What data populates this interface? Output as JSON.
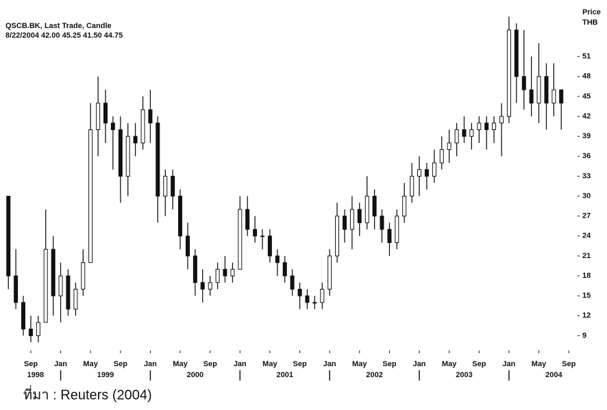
{
  "chart_data": {
    "type": "candlestick",
    "title": "QSCB.BK, Last Trade, Candle",
    "subtitle": "8/22/2004 42.00 45.25 41.50 44.75",
    "y_axis_label": [
      "Price",
      "THB"
    ],
    "source": "ที่มา : Reuters (2004)",
    "color": "#111111",
    "x": [
      1998.417,
      1998.5,
      1998.583,
      1998.667,
      1998.75,
      1998.833,
      1998.917,
      1999.0,
      1999.083,
      1999.167,
      1999.25,
      1999.333,
      1999.417,
      1999.5,
      1999.583,
      1999.667,
      1999.75,
      1999.833,
      1999.917,
      2000.0,
      2000.083,
      2000.167,
      2000.25,
      2000.333,
      2000.417,
      2000.5,
      2000.583,
      2000.667,
      2000.75,
      2000.833,
      2000.917,
      2001.0,
      2001.083,
      2001.167,
      2001.25,
      2001.333,
      2001.417,
      2001.5,
      2001.583,
      2001.667,
      2001.75,
      2001.833,
      2001.917,
      2002.0,
      2002.083,
      2002.167,
      2002.25,
      2002.333,
      2002.417,
      2002.5,
      2002.583,
      2002.667,
      2002.75,
      2002.833,
      2002.917,
      2003.0,
      2003.083,
      2003.167,
      2003.25,
      2003.333,
      2003.417,
      2003.5,
      2003.583,
      2003.667,
      2003.75,
      2003.833,
      2003.917,
      2004.0,
      2004.083,
      2004.167,
      2004.25,
      2004.333,
      2004.417,
      2004.5,
      2004.583
    ],
    "series": [
      {
        "open": [
          30,
          18,
          14,
          10,
          9,
          11,
          22,
          15,
          18,
          13,
          16,
          20,
          40,
          44,
          41,
          40,
          33,
          39,
          38,
          43,
          41,
          30,
          33,
          30,
          24,
          21,
          17,
          16,
          17,
          19,
          18,
          19,
          28,
          25,
          24,
          24,
          21,
          20,
          18,
          16,
          15,
          14,
          14,
          16,
          21,
          27,
          25,
          28,
          26,
          30,
          27,
          25,
          23,
          27,
          30,
          33,
          34,
          33,
          35,
          37,
          38,
          40,
          39,
          40,
          41,
          40,
          41,
          42,
          55,
          48,
          46,
          44,
          48,
          44,
          46
        ],
        "high": [
          30,
          22,
          15,
          12,
          12,
          28,
          24,
          20,
          19,
          17,
          22,
          44,
          48,
          46,
          42,
          42,
          41,
          41,
          45,
          46,
          42,
          34,
          34,
          31,
          26,
          22,
          19,
          18,
          20,
          21,
          20,
          30,
          30,
          27,
          25,
          25,
          22,
          21,
          19,
          17,
          16,
          15,
          17,
          22,
          29,
          28,
          30,
          29,
          33,
          31,
          28,
          26,
          28,
          32,
          35,
          36,
          35,
          37,
          39,
          40,
          41,
          42,
          41,
          42,
          42,
          42,
          44,
          57,
          56,
          55,
          51,
          53,
          50,
          50,
          46
        ],
        "low": [
          16,
          13,
          9,
          8,
          8,
          11,
          12,
          11,
          12,
          12,
          15,
          20,
          36,
          38,
          34,
          29,
          30,
          36,
          37,
          38,
          26,
          27,
          28,
          22,
          19,
          15,
          14,
          15,
          16,
          17,
          17,
          19,
          24,
          23,
          22,
          20,
          18,
          17,
          15,
          13,
          13,
          13,
          13,
          15,
          20,
          23,
          22,
          24,
          25,
          25,
          23,
          21,
          22,
          26,
          29,
          30,
          31,
          32,
          34,
          35,
          36,
          38,
          37,
          38,
          37,
          38,
          36,
          41,
          44,
          43,
          42,
          41,
          40,
          42,
          40
        ],
        "close": [
          18,
          14,
          10,
          9,
          11,
          22,
          15,
          18,
          13,
          16,
          20,
          40,
          44,
          41,
          40,
          33,
          39,
          38,
          43,
          41,
          30,
          33,
          30,
          24,
          21,
          17,
          16,
          17,
          19,
          18,
          19,
          28,
          25,
          24,
          24,
          21,
          20,
          18,
          16,
          15,
          14,
          14,
          16,
          21,
          27,
          25,
          28,
          26,
          30,
          27,
          25,
          23,
          27,
          30,
          33,
          34,
          33,
          35,
          37,
          38,
          40,
          39,
          40,
          41,
          40,
          41,
          42,
          55,
          48,
          46,
          44,
          48,
          44,
          46,
          44
        ]
      }
    ],
    "xlim": [
      1998.415,
      2004.78
    ],
    "xticks": [
      {
        "value": 1998.667,
        "label": "Sep"
      },
      {
        "value": 1999.0,
        "label": "Jan"
      },
      {
        "value": 1999.333,
        "label": "May"
      },
      {
        "value": 1999.667,
        "label": "Sep"
      },
      {
        "value": 2000.0,
        "label": "Jan"
      },
      {
        "value": 2000.333,
        "label": "May"
      },
      {
        "value": 2000.667,
        "label": "Sep"
      },
      {
        "value": 2001.0,
        "label": "Jan"
      },
      {
        "value": 2001.333,
        "label": "May"
      },
      {
        "value": 2001.667,
        "label": "Sep"
      },
      {
        "value": 2002.0,
        "label": "Jan"
      },
      {
        "value": 2002.333,
        "label": "May"
      },
      {
        "value": 2002.667,
        "label": "Sep"
      },
      {
        "value": 2003.0,
        "label": "Jan"
      },
      {
        "value": 2003.333,
        "label": "May"
      },
      {
        "value": 2003.667,
        "label": "Sep"
      },
      {
        "value": 2004.0,
        "label": "Jan"
      },
      {
        "value": 2004.333,
        "label": "May"
      },
      {
        "value": 2004.667,
        "label": "Sep"
      }
    ],
    "year_labels": [
      {
        "value": 1998.72,
        "label": "1998"
      },
      {
        "value": 1999.5,
        "label": "1999"
      },
      {
        "value": 2000.5,
        "label": "2000"
      },
      {
        "value": 2001.5,
        "label": "2001"
      },
      {
        "value": 2002.5,
        "label": "2002"
      },
      {
        "value": 2003.5,
        "label": "2003"
      },
      {
        "value": 2004.5,
        "label": "2004"
      }
    ],
    "ylim": [
      7.5,
      59
    ],
    "yticks": [
      9,
      12,
      15,
      18,
      21,
      24,
      27,
      30,
      33,
      36,
      39,
      42,
      45,
      48,
      51
    ]
  }
}
